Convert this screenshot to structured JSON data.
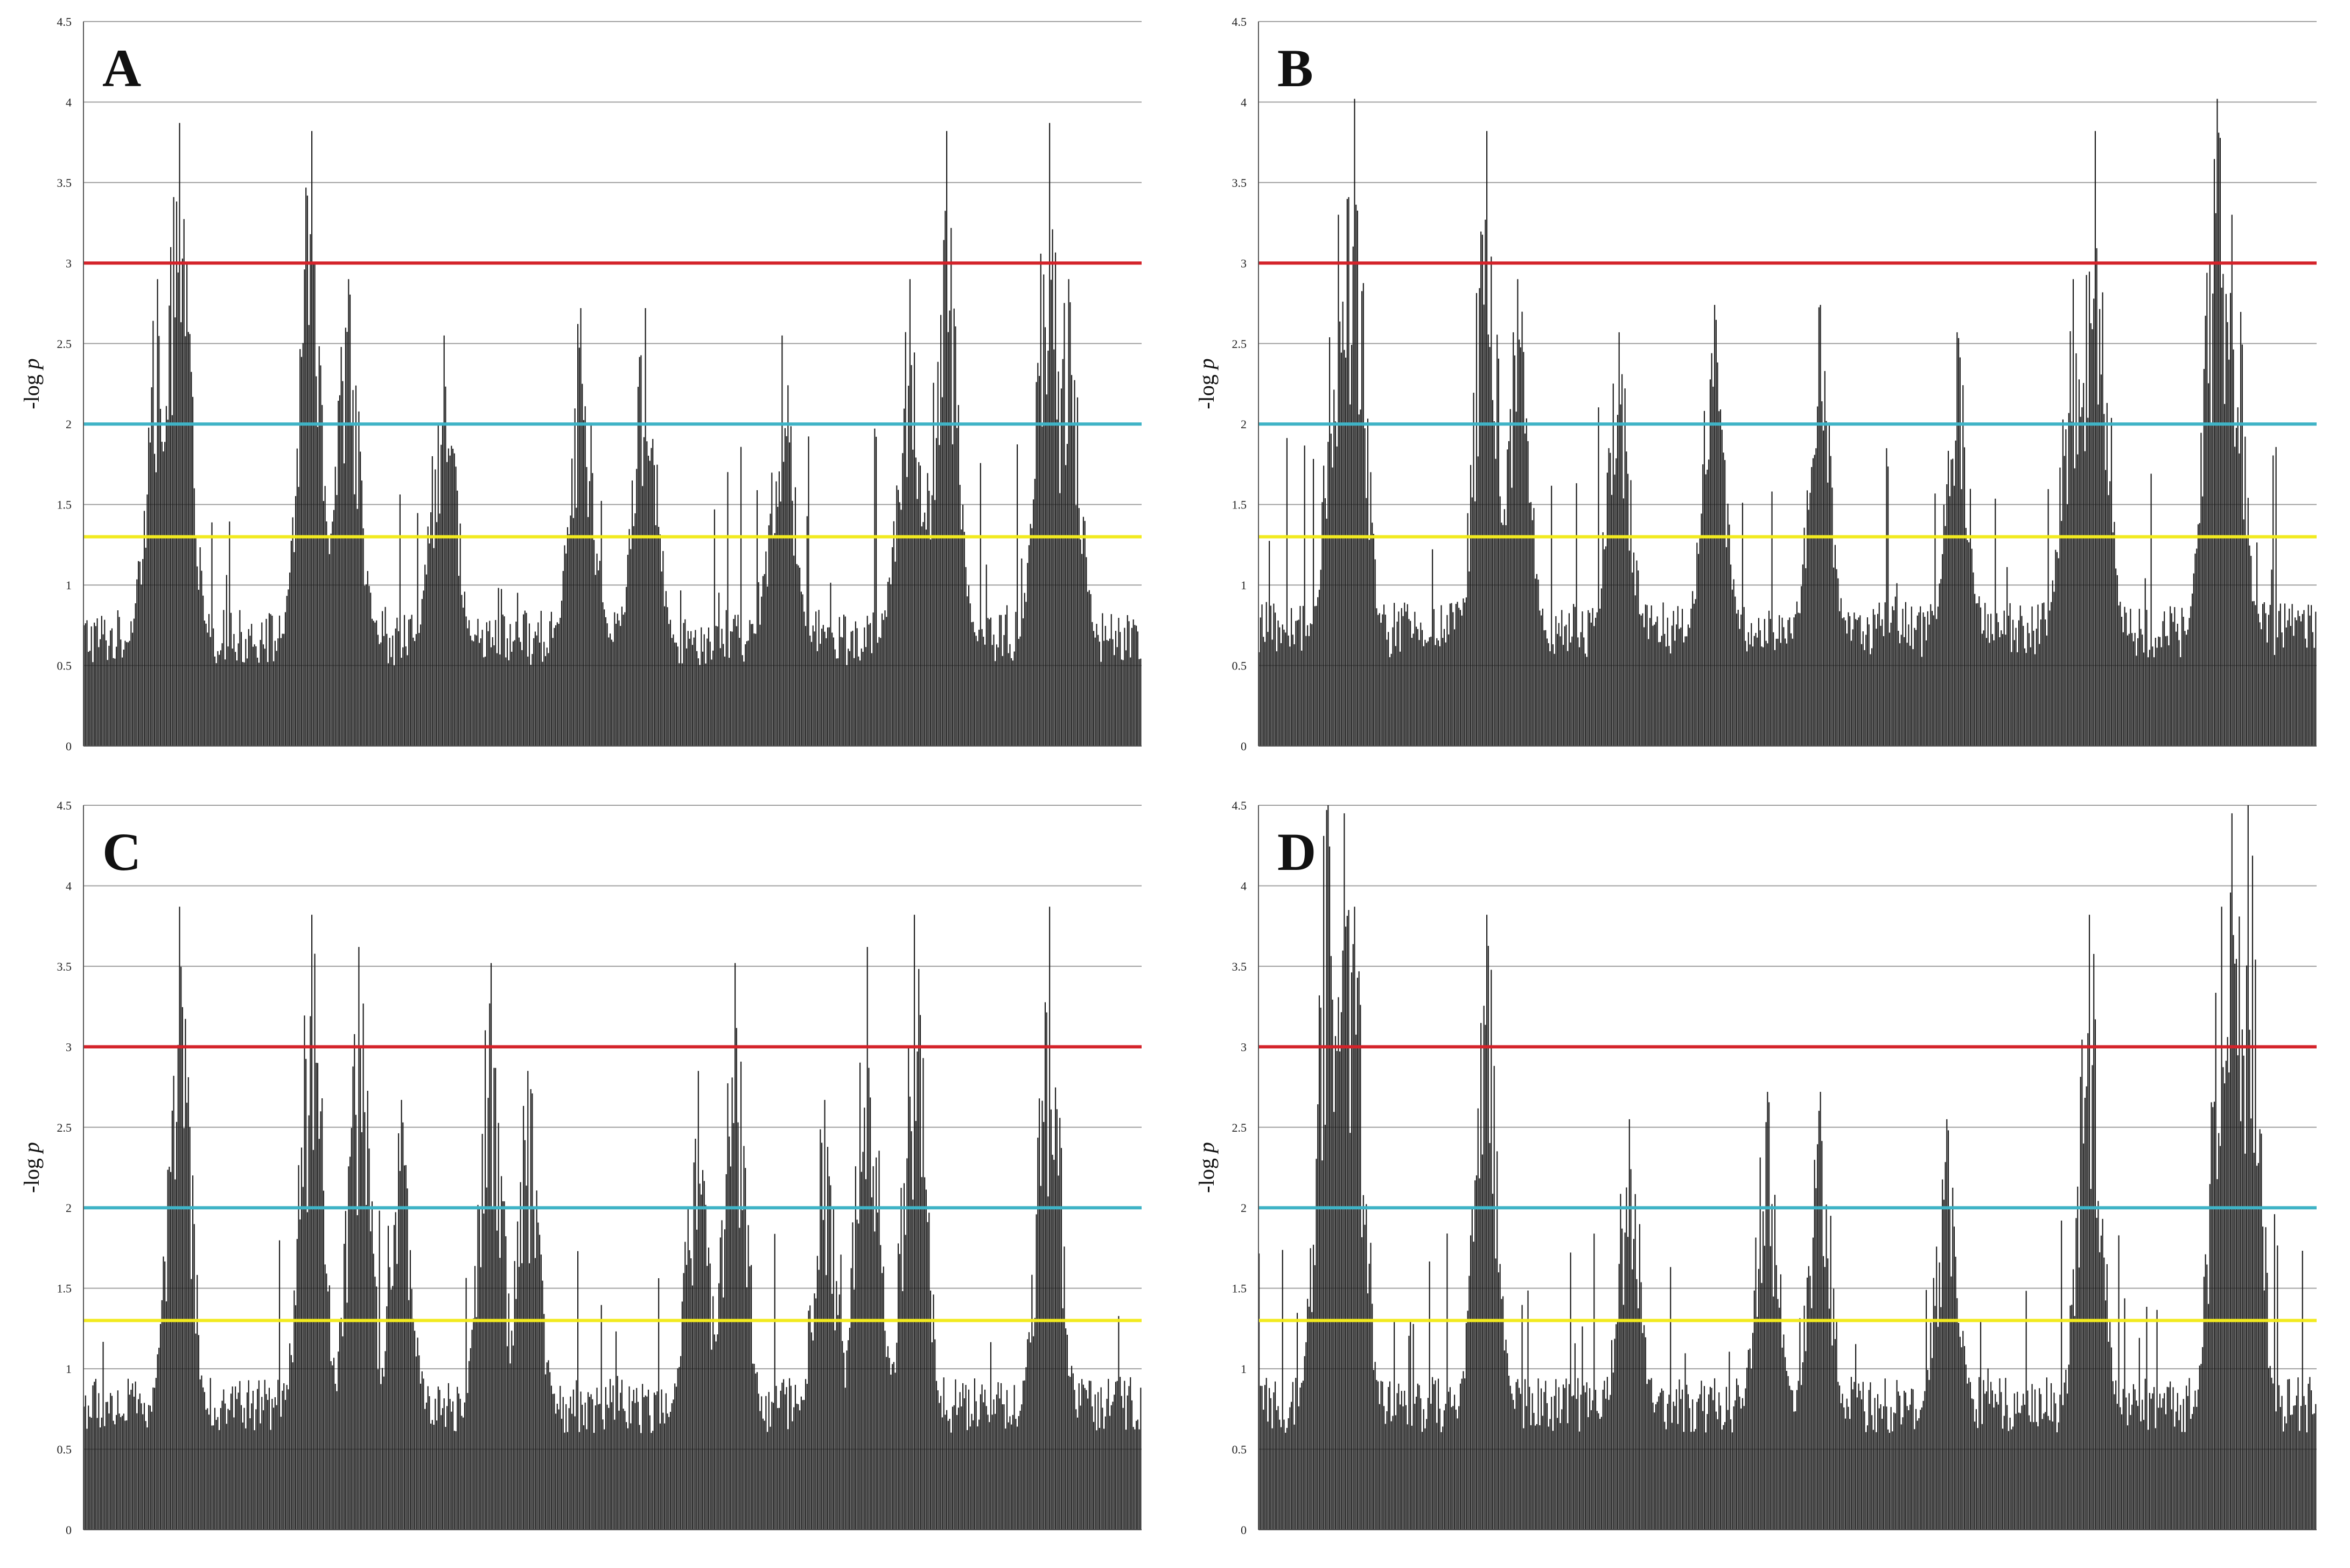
{
  "colors": {
    "bars": "#1a1a1a",
    "gridline": "#a0a0a0",
    "axis": "#555555",
    "threshold_high": "#d4232a",
    "threshold_mid": "#3fb3c6",
    "threshold_low": "#f2ea1e"
  },
  "chart_data": [
    {
      "type": "bar",
      "panel_label": "A",
      "ylabel": "-log p",
      "ylim": [
        0,
        4.5
      ],
      "yticks": [
        "0",
        "0.5",
        "1",
        "1.5",
        "2",
        "2.5",
        "3",
        "3.5",
        "4",
        "4.5"
      ],
      "grid": true,
      "thresholds": [
        1.3,
        2,
        3
      ],
      "n_bars": 720,
      "baseline": 0.5,
      "peaks": [
        {
          "pos": 0.09,
          "height": 3.87
        },
        {
          "pos": 0.215,
          "height": 3.82
        },
        {
          "pos": 0.815,
          "height": 3.82
        },
        {
          "pos": 0.912,
          "height": 3.87
        },
        {
          "pos": 0.07,
          "height": 2.9
        },
        {
          "pos": 0.25,
          "height": 2.9
        },
        {
          "pos": 0.34,
          "height": 2.55
        },
        {
          "pos": 0.47,
          "height": 2.72
        },
        {
          "pos": 0.53,
          "height": 2.72
        },
        {
          "pos": 0.66,
          "height": 2.55
        },
        {
          "pos": 0.78,
          "height": 2.9
        },
        {
          "pos": 0.93,
          "height": 2.9
        }
      ]
    },
    {
      "type": "bar",
      "panel_label": "B",
      "ylabel": "-log p",
      "ylim": [
        0,
        4.5
      ],
      "yticks": [
        "0",
        "0.5",
        "1",
        "1.5",
        "2",
        "2.5",
        "3",
        "3.5",
        "4",
        "4.5"
      ],
      "grid": true,
      "thresholds": [
        1.3,
        2,
        3
      ],
      "n_bars": 720,
      "baseline": 0.55,
      "peaks": [
        {
          "pos": 0.09,
          "height": 4.02
        },
        {
          "pos": 0.215,
          "height": 3.82
        },
        {
          "pos": 0.79,
          "height": 3.82
        },
        {
          "pos": 0.905,
          "height": 4.02
        },
        {
          "pos": 0.075,
          "height": 3.3
        },
        {
          "pos": 0.245,
          "height": 2.9
        },
        {
          "pos": 0.34,
          "height": 2.57
        },
        {
          "pos": 0.43,
          "height": 2.74
        },
        {
          "pos": 0.53,
          "height": 2.74
        },
        {
          "pos": 0.66,
          "height": 2.57
        },
        {
          "pos": 0.77,
          "height": 2.9
        },
        {
          "pos": 0.92,
          "height": 3.3
        }
      ]
    },
    {
      "type": "bar",
      "panel_label": "C",
      "ylabel": "-log p",
      "ylim": [
        0,
        4.5
      ],
      "yticks": [
        "0",
        "0.5",
        "1",
        "1.5",
        "2",
        "2.5",
        "3",
        "3.5",
        "4",
        "4.5"
      ],
      "grid": true,
      "thresholds": [
        1.3,
        2,
        3
      ],
      "n_bars": 720,
      "baseline": 0.6,
      "peaks": [
        {
          "pos": 0.09,
          "height": 3.87
        },
        {
          "pos": 0.215,
          "height": 3.82
        },
        {
          "pos": 0.26,
          "height": 3.62
        },
        {
          "pos": 0.385,
          "height": 3.52
        },
        {
          "pos": 0.615,
          "height": 3.52
        },
        {
          "pos": 0.74,
          "height": 3.62
        },
        {
          "pos": 0.785,
          "height": 3.82
        },
        {
          "pos": 0.912,
          "height": 3.87
        },
        {
          "pos": 0.3,
          "height": 2.67
        },
        {
          "pos": 0.42,
          "height": 2.85
        },
        {
          "pos": 0.58,
          "height": 2.85
        },
        {
          "pos": 0.7,
          "height": 2.67
        }
      ]
    },
    {
      "type": "bar",
      "panel_label": "D",
      "ylabel": "-log p",
      "ylim": [
        0,
        4.5
      ],
      "yticks": [
        "0",
        "0.5",
        "1",
        "1.5",
        "2",
        "2.5",
        "3",
        "3.5",
        "4",
        "4.5"
      ],
      "grid": true,
      "thresholds": [
        1.3,
        2,
        3
      ],
      "n_bars": 720,
      "baseline": 0.6,
      "peaks": [
        {
          "pos": 0.065,
          "height": 4.56
        },
        {
          "pos": 0.08,
          "height": 4.45
        },
        {
          "pos": 0.09,
          "height": 3.87
        },
        {
          "pos": 0.215,
          "height": 3.82
        },
        {
          "pos": 0.785,
          "height": 3.82
        },
        {
          "pos": 0.91,
          "height": 3.87
        },
        {
          "pos": 0.92,
          "height": 4.45
        },
        {
          "pos": 0.935,
          "height": 4.56
        },
        {
          "pos": 0.35,
          "height": 2.55
        },
        {
          "pos": 0.48,
          "height": 2.72
        },
        {
          "pos": 0.53,
          "height": 2.72
        },
        {
          "pos": 0.65,
          "height": 2.55
        }
      ]
    }
  ]
}
